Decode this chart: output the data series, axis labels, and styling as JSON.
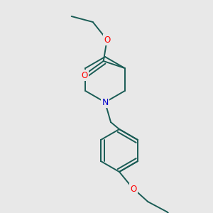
{
  "background_color": "#e8e8e8",
  "bond_color": "#1a5c55",
  "atom_colors": {
    "O": "#ff0000",
    "N": "#0000cc"
  },
  "line_width": 1.4,
  "font_size": 8.5,
  "figsize": [
    3.0,
    3.0
  ],
  "dpi": 100
}
